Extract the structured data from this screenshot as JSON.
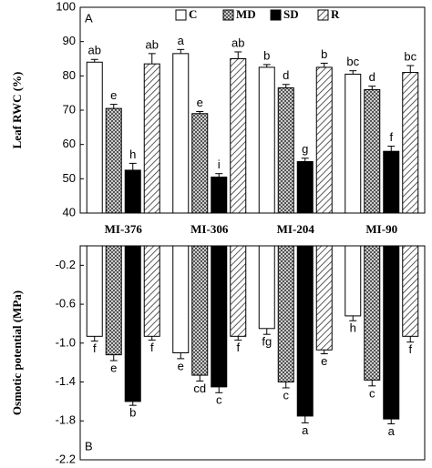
{
  "chart_data": [
    {
      "type": "bar",
      "panel_label": "A",
      "y_label": "Leaf RWC (%)",
      "categories": [
        "MI-376",
        "MI-306",
        "MI-204",
        "MI-90"
      ],
      "ylim": [
        40,
        100
      ],
      "yticks": [
        40,
        50,
        60,
        70,
        80,
        90,
        100
      ],
      "series": [
        {
          "name": "C",
          "color": "#ffffff",
          "pattern": "none",
          "values": [
            84,
            86.5,
            82.5,
            80.5
          ],
          "errors": [
            0.8,
            1.2,
            0.8,
            1
          ],
          "labels": [
            "ab",
            "a",
            "b",
            "bc"
          ]
        },
        {
          "name": "MD",
          "color": "#888888",
          "pattern": "crosshatch",
          "values": [
            70.5,
            69,
            76.5,
            76
          ],
          "errors": [
            1.2,
            0.6,
            1,
            1
          ],
          "labels": [
            "e",
            "e",
            "d",
            "d"
          ]
        },
        {
          "name": "SD",
          "color": "#000000",
          "pattern": "solid",
          "values": [
            52.5,
            50.5,
            55,
            58
          ],
          "errors": [
            2,
            1,
            1,
            1.5
          ],
          "labels": [
            "h",
            "i",
            "g",
            "f"
          ]
        },
        {
          "name": "R",
          "color": "#ffffff",
          "pattern": "diagonal",
          "values": [
            83.5,
            85,
            82.5,
            81
          ],
          "errors": [
            3,
            2,
            1.2,
            2
          ],
          "labels": [
            "ab",
            "ab",
            "b",
            "bc"
          ]
        }
      ]
    },
    {
      "type": "bar",
      "panel_label": "B",
      "y_label": "Osmotic potential (MPa)",
      "ylim": [
        -2.2,
        0
      ],
      "yticks": [
        -0.2,
        -0.6,
        {
          "value": -1,
          "label": "-1.0"
        },
        -1.4,
        -1.8,
        -2.2
      ],
      "series": [
        {
          "color": "#ffffff",
          "pattern": "none",
          "values": [
            -0.93,
            -1.1,
            -0.85,
            -0.72
          ],
          "errors": [
            0.05,
            0.06,
            0.06,
            0.05
          ],
          "labels": [
            "f",
            "e",
            "fg",
            "h"
          ]
        },
        {
          "color": "#888888",
          "pattern": "crosshatch",
          "values": [
            -1.12,
            -1.33,
            -1.4,
            -1.38
          ],
          "errors": [
            0.06,
            0.06,
            0.06,
            0.06
          ],
          "labels": [
            "e",
            "cd",
            "c",
            "c"
          ]
        },
        {
          "color": "#000000",
          "pattern": "solid",
          "values": [
            -1.6,
            -1.45,
            -1.75,
            -1.78
          ],
          "errors": [
            0.04,
            0.06,
            0.07,
            0.05
          ],
          "labels": [
            "b",
            "c",
            "a",
            "a"
          ]
        },
        {
          "color": "#ffffff",
          "pattern": "diagonal",
          "values": [
            -0.93,
            -0.93,
            -1.07,
            -0.93
          ],
          "errors": [
            0.04,
            0.04,
            0.04,
            0.06
          ],
          "labels": [
            "f",
            "f",
            "e",
            "f"
          ]
        }
      ]
    }
  ]
}
